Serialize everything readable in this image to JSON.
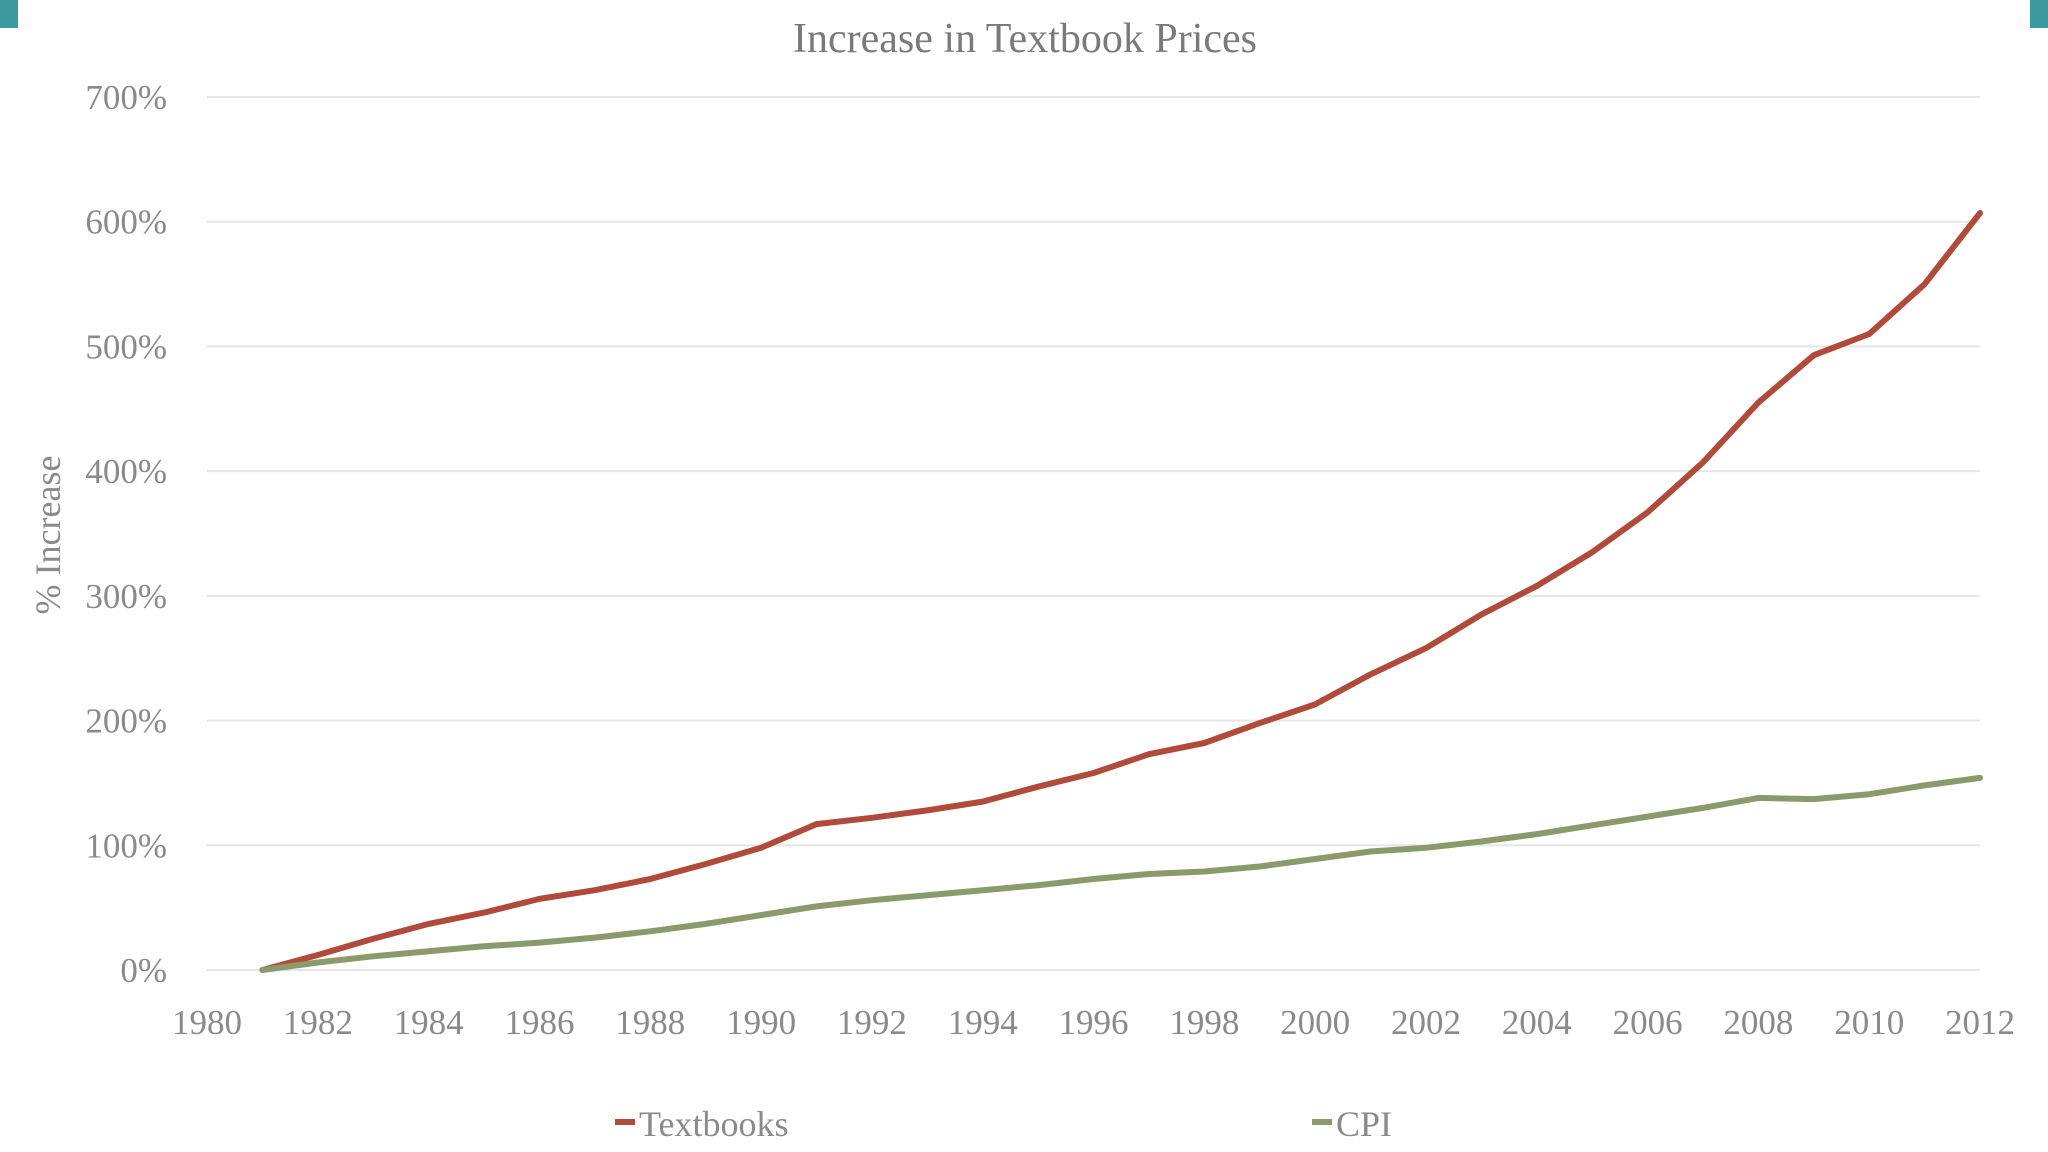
{
  "colors": {
    "accent": "#3a9aa0",
    "textbooks": "#b04a3b",
    "cpi": "#8b9a6a",
    "grid": "#e6e6e6",
    "text": "#8a8a8a"
  },
  "chart_data": {
    "type": "line",
    "title": "Increase in Textbook Prices",
    "xlabel": "",
    "ylabel": "% Increase",
    "xlim": [
      1980,
      2012
    ],
    "ylim": [
      0,
      700
    ],
    "x_ticks": [
      1980,
      1982,
      1984,
      1986,
      1988,
      1990,
      1992,
      1994,
      1996,
      1998,
      2000,
      2002,
      2004,
      2006,
      2008,
      2010,
      2012
    ],
    "x_tick_labels": [
      "1980",
      "1982",
      "1984",
      "1986",
      "1988",
      "1990",
      "1992",
      "1994",
      "1996",
      "1998",
      "2000",
      "2002",
      "2004",
      "2006",
      "2008",
      "2010",
      "2012"
    ],
    "y_ticks": [
      0,
      100,
      200,
      300,
      400,
      500,
      600,
      700
    ],
    "y_tick_labels": [
      "0%",
      "100%",
      "200%",
      "300%",
      "400%",
      "500%",
      "600%",
      "700%"
    ],
    "grid": true,
    "legend_position": "bottom",
    "series": [
      {
        "name": "Textbooks",
        "color": "#b04a3b",
        "x": [
          1981,
          1982,
          1983,
          1984,
          1985,
          1986,
          1987,
          1988,
          1989,
          1990,
          1991,
          1992,
          1993,
          1994,
          1995,
          1996,
          1997,
          1998,
          1999,
          2000,
          2001,
          2002,
          2003,
          2004,
          2005,
          2006,
          2007,
          2008,
          2009,
          2010,
          2011,
          2012
        ],
        "y": [
          0,
          12,
          25,
          37,
          46,
          57,
          64,
          73,
          85,
          98,
          117,
          122,
          128,
          135,
          147,
          158,
          173,
          182,
          198,
          213,
          237,
          258,
          285,
          308,
          335,
          367,
          407,
          455,
          493,
          510,
          550,
          607
        ]
      },
      {
        "name": "CPI",
        "color": "#8b9a6a",
        "x": [
          1981,
          1982,
          1983,
          1984,
          1985,
          1986,
          1987,
          1988,
          1989,
          1990,
          1991,
          1992,
          1993,
          1994,
          1995,
          1996,
          1997,
          1998,
          1999,
          2000,
          2001,
          2002,
          2003,
          2004,
          2005,
          2006,
          2007,
          2008,
          2009,
          2010,
          2011,
          2012
        ],
        "y": [
          0,
          6,
          11,
          15,
          19,
          22,
          26,
          31,
          37,
          44,
          51,
          56,
          60,
          64,
          68,
          73,
          77,
          79,
          83,
          89,
          95,
          98,
          103,
          109,
          116,
          123,
          130,
          138,
          137,
          141,
          148,
          154
        ]
      }
    ]
  }
}
